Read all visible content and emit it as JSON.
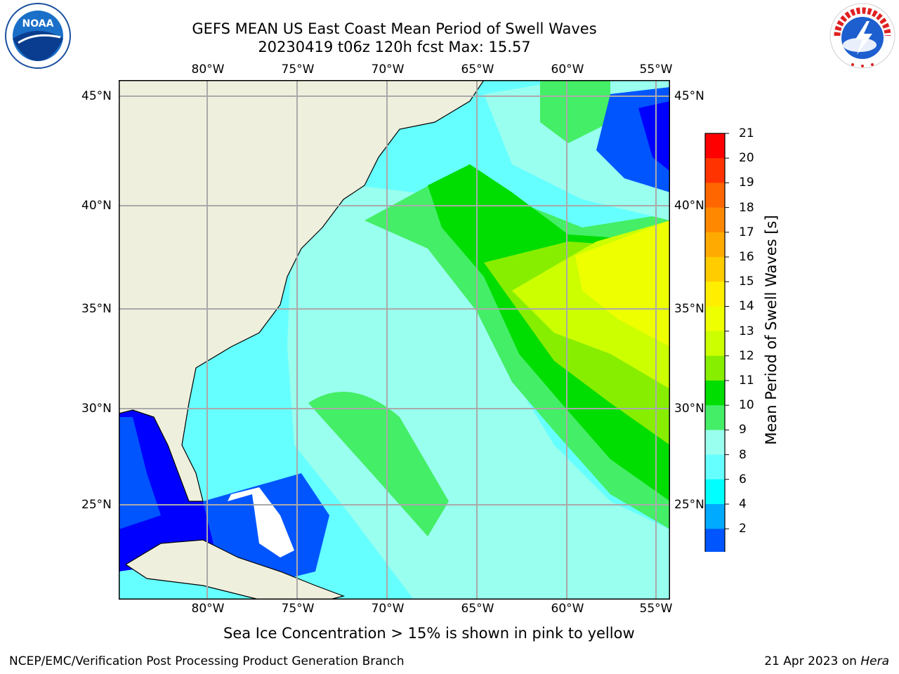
{
  "title": {
    "line1": "GEFS MEAN US East Coast Mean Period of Swell Waves",
    "line2": "20230419 t06z 120h fcst   Max: 15.57"
  },
  "map": {
    "lon_labels": [
      "80°W",
      "75°W",
      "70°W",
      "65°W",
      "60°W",
      "55°W"
    ],
    "lat_labels": [
      "45°N",
      "40°N",
      "35°N",
      "30°N",
      "25°N"
    ]
  },
  "colorbar": {
    "title": "Mean Period of Swell Waves [s]",
    "ticks": [
      "21",
      "20",
      "19",
      "18",
      "17",
      "16",
      "15",
      "14",
      "13",
      "12",
      "11",
      "10",
      "9",
      "8",
      "6",
      "4",
      "2"
    ],
    "colors": [
      "#ff0000",
      "#ff3300",
      "#ff6600",
      "#ff8800",
      "#ffaa00",
      "#ffcc00",
      "#ffee00",
      "#eeff00",
      "#ccff00",
      "#88ee00",
      "#00dd00",
      "#44ee66",
      "#99ffee",
      "#66ffff",
      "#00ffff",
      "#00aaff",
      "#0055ff"
    ],
    "extend_color": "#0000ff"
  },
  "caption": "Sea Ice Concentration > 15% is shown in pink to yellow",
  "footer": {
    "left": "NCEP/EMC/Verification Post Processing Product Generation Branch",
    "right_prefix": "21 Apr 2023 on ",
    "right_host": "Hera"
  },
  "logos": {
    "noaa": "NOAA",
    "nws_top": "NATIONAL WEATHER SERVICE"
  }
}
